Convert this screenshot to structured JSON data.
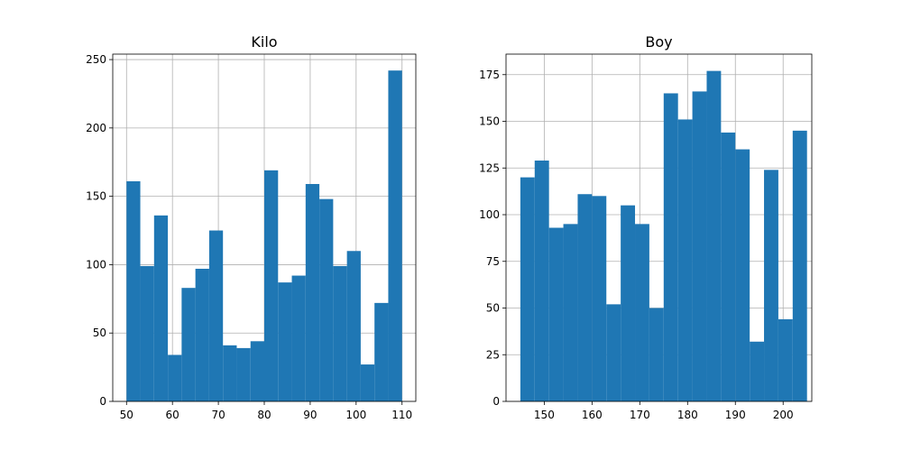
{
  "chart_data": [
    {
      "type": "bar",
      "title": "Kilo",
      "xlabel": "",
      "ylabel": "",
      "x_ticks": [
        50,
        60,
        70,
        80,
        90,
        100,
        110
      ],
      "y_ticks": [
        0,
        50,
        100,
        150,
        200,
        250
      ],
      "xlim": [
        47.0,
        113.0
      ],
      "ylim": [
        0,
        254
      ],
      "grid": true,
      "bins": [
        {
          "start": 50,
          "end": 53,
          "value": 161
        },
        {
          "start": 53,
          "end": 56,
          "value": 99
        },
        {
          "start": 56,
          "end": 59,
          "value": 136
        },
        {
          "start": 59,
          "end": 62,
          "value": 34
        },
        {
          "start": 62,
          "end": 65,
          "value": 83
        },
        {
          "start": 65,
          "end": 68,
          "value": 97
        },
        {
          "start": 68,
          "end": 71,
          "value": 125
        },
        {
          "start": 71,
          "end": 74,
          "value": 41
        },
        {
          "start": 74,
          "end": 77,
          "value": 39
        },
        {
          "start": 77,
          "end": 80,
          "value": 44
        },
        {
          "start": 80,
          "end": 83,
          "value": 169
        },
        {
          "start": 83,
          "end": 86,
          "value": 87
        },
        {
          "start": 86,
          "end": 89,
          "value": 92
        },
        {
          "start": 89,
          "end": 92,
          "value": 159
        },
        {
          "start": 92,
          "end": 95,
          "value": 148
        },
        {
          "start": 95,
          "end": 98,
          "value": 99
        },
        {
          "start": 98,
          "end": 101,
          "value": 110
        },
        {
          "start": 101,
          "end": 104,
          "value": 27
        },
        {
          "start": 104,
          "end": 107,
          "value": 72
        },
        {
          "start": 107,
          "end": 110,
          "value": 242
        }
      ],
      "bar_color": "#1f77b4",
      "grid_color": "#b0b0b0"
    },
    {
      "type": "bar",
      "title": "Boy",
      "xlabel": "",
      "ylabel": "",
      "x_ticks": [
        150,
        160,
        170,
        180,
        190,
        200
      ],
      "y_ticks": [
        0,
        25,
        50,
        75,
        100,
        125,
        150,
        175
      ],
      "xlim": [
        142.0,
        206.0
      ],
      "ylim": [
        0,
        186
      ],
      "grid": true,
      "bins": [
        {
          "start": 145,
          "end": 148,
          "value": 120
        },
        {
          "start": 148,
          "end": 151,
          "value": 129
        },
        {
          "start": 151,
          "end": 154,
          "value": 93
        },
        {
          "start": 154,
          "end": 157,
          "value": 95
        },
        {
          "start": 157,
          "end": 160,
          "value": 111
        },
        {
          "start": 160,
          "end": 163,
          "value": 110
        },
        {
          "start": 163,
          "end": 166,
          "value": 52
        },
        {
          "start": 166,
          "end": 169,
          "value": 105
        },
        {
          "start": 169,
          "end": 172,
          "value": 95
        },
        {
          "start": 172,
          "end": 175,
          "value": 50
        },
        {
          "start": 175,
          "end": 178,
          "value": 165
        },
        {
          "start": 178,
          "end": 181,
          "value": 151
        },
        {
          "start": 181,
          "end": 184,
          "value": 166
        },
        {
          "start": 184,
          "end": 187,
          "value": 177
        },
        {
          "start": 187,
          "end": 190,
          "value": 144
        },
        {
          "start": 190,
          "end": 193,
          "value": 135
        },
        {
          "start": 193,
          "end": 196,
          "value": 32
        },
        {
          "start": 196,
          "end": 199,
          "value": 124
        },
        {
          "start": 199,
          "end": 202,
          "value": 44
        },
        {
          "start": 202,
          "end": 205,
          "value": 145
        }
      ],
      "bar_color": "#1f77b4",
      "grid_color": "#b0b0b0"
    }
  ]
}
